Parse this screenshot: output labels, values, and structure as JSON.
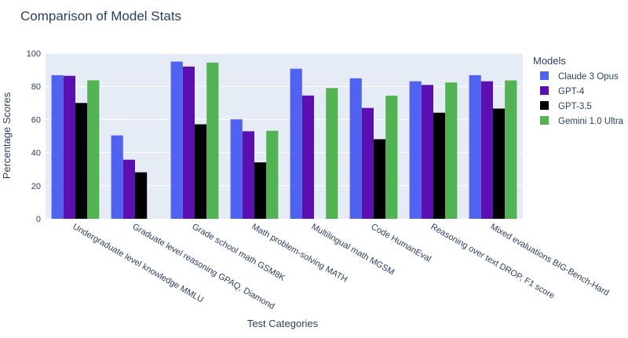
{
  "chart_data": {
    "type": "bar",
    "title": "Comparison of Model Stats",
    "xlabel": "Test Categories",
    "ylabel": "Percentage Scores",
    "ylim": [
      0,
      100
    ],
    "yticks": [
      0,
      20,
      40,
      60,
      80,
      100
    ],
    "grid": true,
    "legend_title": "Models",
    "legend_position": "right",
    "categories": [
      "Undergraduate level knowledge MMLU",
      "Graduate level reasoning GPAQ, Diamond",
      "Grade school math GSM8K",
      "Math problem-solving MATH",
      "Multilingual math MGSM",
      "Code HumanEval",
      "Reasoning over text DROP, F1 score",
      "Mixed evaluations BIG-Bench-Hard"
    ],
    "series": [
      {
        "name": "Claude 3 Opus",
        "color": "#4f62f0",
        "values": [
          86.8,
          50.4,
          95.0,
          60.1,
          90.7,
          84.9,
          83.1,
          86.8
        ]
      },
      {
        "name": "GPT-4",
        "color": "#5b0fb0",
        "values": [
          86.4,
          35.7,
          92.0,
          52.9,
          74.5,
          67.0,
          80.9,
          83.1
        ]
      },
      {
        "name": "GPT-3.5",
        "color": "#000000",
        "values": [
          70.0,
          28.1,
          57.1,
          34.1,
          null,
          48.1,
          64.1,
          66.6
        ]
      },
      {
        "name": "Gemini 1.0 Ultra",
        "color": "#52b352",
        "values": [
          83.7,
          null,
          94.4,
          53.2,
          79.0,
          74.4,
          82.4,
          83.6
        ]
      }
    ]
  }
}
